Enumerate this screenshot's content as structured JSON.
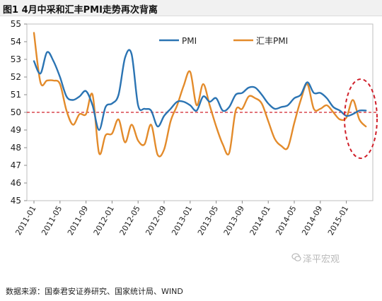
{
  "title": "图1  4月中采和汇丰PMI走势再次背离",
  "source": "数据来源：国泰君安证券研究、国家统计局、WIND",
  "watermark": "泽平宏观",
  "chart_data": {
    "type": "line",
    "ylim": [
      45,
      55
    ],
    "yticks": [
      45,
      46,
      47,
      48,
      49,
      50,
      51,
      52,
      53,
      54,
      55
    ],
    "xticks": [
      "2011-01",
      "2011-05",
      "2011-09",
      "2012-01",
      "2012-05",
      "2012-09",
      "2013-01",
      "2013-05",
      "2013-09",
      "2014-01",
      "2014-05",
      "2014-09",
      "2015-01"
    ],
    "reference_line": 50,
    "legend_position": "top",
    "series": [
      {
        "name": "PMI",
        "color": "#2b74b3",
        "values": [
          52.9,
          52.2,
          53.4,
          52.9,
          52.0,
          50.9,
          50.7,
          50.9,
          51.2,
          50.4,
          49.0,
          50.3,
          50.5,
          51.0,
          53.1,
          53.3,
          50.4,
          50.2,
          50.1,
          49.2,
          49.8,
          50.2,
          50.6,
          50.6,
          50.4,
          50.1,
          50.9,
          50.6,
          50.8,
          50.1,
          50.3,
          51.0,
          51.1,
          51.4,
          51.4,
          51.0,
          50.5,
          50.2,
          50.3,
          50.4,
          50.8,
          51.0,
          51.7,
          51.1,
          51.1,
          50.8,
          50.3,
          50.1,
          49.8,
          49.9,
          50.1,
          50.1
        ]
      },
      {
        "name": "汇丰PMI",
        "color": "#e38b2b",
        "values": [
          54.5,
          51.7,
          51.8,
          51.8,
          51.6,
          50.1,
          49.3,
          49.9,
          49.9,
          51.0,
          47.7,
          48.7,
          48.8,
          49.6,
          48.3,
          49.3,
          48.4,
          48.2,
          49.3,
          47.6,
          47.9,
          49.5,
          50.4,
          51.5,
          52.3,
          50.4,
          51.6,
          50.4,
          49.2,
          48.2,
          47.7,
          50.1,
          50.2,
          50.9,
          50.8,
          50.5,
          49.5,
          48.5,
          48.1,
          48.0,
          49.4,
          50.7,
          51.6,
          50.2,
          50.2,
          50.4,
          50.0,
          49.6,
          49.7,
          50.7,
          49.6,
          49.2
        ]
      }
    ],
    "annotation": "red dashed ellipse around the 2015 divergence"
  }
}
